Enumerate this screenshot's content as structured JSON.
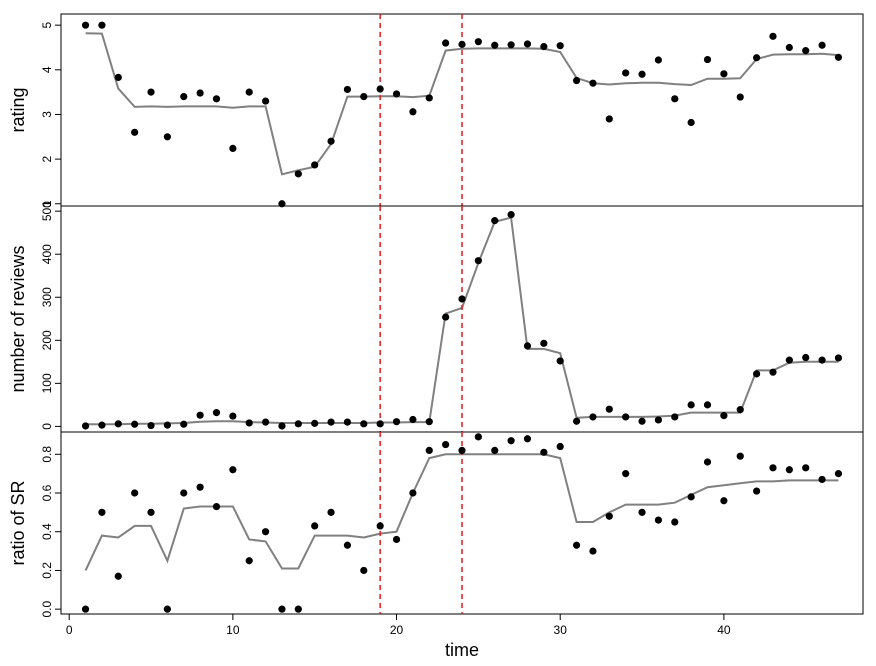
{
  "chart_data": [
    {
      "type": "scatter",
      "ylabel": "rating",
      "ylim": [
        0.95,
        5.25
      ],
      "yticks": [
        1,
        2,
        3,
        4,
        5
      ],
      "ytick_labels": [
        "1",
        "2",
        "3",
        "4",
        "5"
      ],
      "xlim": [
        -0.5,
        48.5
      ],
      "points": {
        "x": [
          1,
          2,
          3,
          4,
          5,
          6,
          7,
          8,
          9,
          10,
          11,
          12,
          13,
          14,
          15,
          16,
          17,
          18,
          19,
          20,
          21,
          22,
          23,
          24,
          25,
          26,
          27,
          28,
          29,
          30,
          31,
          32,
          33,
          34,
          35,
          36,
          37,
          38,
          39,
          40,
          41,
          42,
          43,
          44,
          45,
          46,
          47
        ],
        "y": [
          5.0,
          5.0,
          3.83,
          2.6,
          3.5,
          2.5,
          3.4,
          3.48,
          3.35,
          2.24,
          3.5,
          3.3,
          1.0,
          1.67,
          1.87,
          2.4,
          3.56,
          3.4,
          3.57,
          3.46,
          3.06,
          3.37,
          4.6,
          4.57,
          4.63,
          4.55,
          4.56,
          4.58,
          4.52,
          4.54,
          3.76,
          3.7,
          2.9,
          3.93,
          3.9,
          4.22,
          3.35,
          2.82,
          4.23,
          3.91,
          3.39,
          4.27,
          4.75,
          4.5,
          4.43,
          4.55,
          4.28
        ]
      },
      "smooth": {
        "x": [
          1,
          2,
          3,
          4,
          5,
          6,
          7,
          8,
          9,
          10,
          11,
          12,
          13,
          14,
          15,
          16,
          17,
          18,
          19,
          20,
          21,
          22,
          23,
          24,
          25,
          26,
          27,
          28,
          29,
          30,
          31,
          32,
          33,
          34,
          35,
          36,
          37,
          38,
          39,
          40,
          41,
          42,
          43,
          44,
          45,
          46,
          47
        ],
        "y": [
          4.82,
          4.81,
          3.58,
          3.17,
          3.18,
          3.17,
          3.18,
          3.18,
          3.18,
          3.15,
          3.18,
          3.18,
          1.66,
          1.75,
          1.83,
          2.34,
          3.4,
          3.4,
          3.41,
          3.41,
          3.39,
          3.42,
          4.43,
          4.47,
          4.48,
          4.48,
          4.48,
          4.48,
          4.47,
          4.4,
          3.82,
          3.7,
          3.67,
          3.7,
          3.71,
          3.71,
          3.68,
          3.66,
          3.8,
          3.8,
          3.81,
          4.24,
          4.34,
          4.35,
          4.35,
          4.36,
          4.33
        ]
      },
      "vlines": [
        19,
        24
      ],
      "show_xticks": false
    },
    {
      "type": "scatter",
      "ylabel": "number of reviews",
      "ylim": [
        -13,
        512
      ],
      "yticks": [
        0,
        100,
        200,
        300,
        400,
        500
      ],
      "ytick_labels": [
        "0",
        "100",
        "200",
        "300",
        "400",
        "500"
      ],
      "xlim": [
        -0.5,
        48.5
      ],
      "points": {
        "x": [
          1,
          2,
          3,
          4,
          5,
          6,
          7,
          8,
          9,
          10,
          11,
          12,
          13,
          14,
          15,
          16,
          17,
          18,
          19,
          20,
          21,
          22,
          23,
          24,
          25,
          26,
          27,
          28,
          29,
          30,
          31,
          32,
          33,
          34,
          35,
          36,
          37,
          38,
          39,
          40,
          41,
          42,
          43,
          44,
          45,
          46,
          47
        ],
        "y": [
          1,
          3,
          6,
          5,
          2,
          3,
          5,
          26,
          32,
          24,
          8,
          10,
          1,
          6,
          7,
          10,
          10,
          6,
          6,
          11,
          16,
          11,
          254,
          296,
          385,
          478,
          492,
          187,
          193,
          152,
          12,
          22,
          40,
          22,
          12,
          15,
          22,
          50,
          50,
          25,
          39,
          122,
          126,
          154,
          160,
          154,
          159
        ]
      },
      "smooth": {
        "x": [
          1,
          2,
          3,
          4,
          5,
          6,
          7,
          8,
          9,
          10,
          11,
          12,
          13,
          14,
          15,
          16,
          17,
          18,
          19,
          20,
          21,
          22,
          23,
          24,
          25,
          26,
          27,
          28,
          29,
          30,
          31,
          32,
          33,
          34,
          35,
          36,
          37,
          38,
          39,
          40,
          41,
          42,
          43,
          44,
          45,
          46,
          47
        ],
        "y": [
          5,
          5,
          5,
          6,
          6,
          7,
          8,
          11,
          12,
          12,
          10,
          9,
          8,
          8,
          8,
          8,
          8,
          8,
          9,
          9,
          10,
          10,
          262,
          275,
          380,
          475,
          485,
          180,
          180,
          170,
          20,
          22,
          22,
          22,
          22,
          23,
          25,
          32,
          32,
          32,
          32,
          130,
          130,
          148,
          150,
          150,
          150
        ]
      },
      "vlines": [
        19,
        24
      ],
      "show_xticks": false
    },
    {
      "type": "scatter",
      "xlabel": "time",
      "ylabel": "ratio of SR",
      "ylim": [
        -0.025,
        0.915
      ],
      "yticks": [
        0.0,
        0.2,
        0.4,
        0.6,
        0.8
      ],
      "ytick_labels": [
        "0.0",
        "0.2",
        "0.4",
        "0.6",
        "0.8"
      ],
      "xlim": [
        -0.5,
        48.5
      ],
      "xticks": [
        0,
        10,
        20,
        30,
        40
      ],
      "xtick_labels": [
        "0",
        "10",
        "20",
        "30",
        "40"
      ],
      "points": {
        "x": [
          1,
          2,
          3,
          4,
          5,
          6,
          7,
          8,
          9,
          10,
          11,
          12,
          13,
          14,
          15,
          16,
          17,
          18,
          19,
          20,
          21,
          22,
          23,
          24,
          25,
          26,
          27,
          28,
          29,
          30,
          31,
          32,
          33,
          34,
          35,
          36,
          37,
          38,
          39,
          40,
          41,
          42,
          43,
          44,
          45,
          46,
          47
        ],
        "y": [
          0.0,
          0.5,
          0.17,
          0.6,
          0.5,
          0.0,
          0.6,
          0.63,
          0.53,
          0.72,
          0.25,
          0.4,
          0.0,
          0.0,
          0.43,
          0.5,
          0.33,
          0.2,
          0.43,
          0.36,
          0.6,
          0.82,
          0.85,
          0.82,
          0.89,
          0.82,
          0.87,
          0.88,
          0.81,
          0.84,
          0.33,
          0.3,
          0.48,
          0.7,
          0.5,
          0.46,
          0.45,
          0.58,
          0.76,
          0.56,
          0.79,
          0.61,
          0.73,
          0.72,
          0.73,
          0.67,
          0.7
        ]
      },
      "smooth": {
        "x": [
          1,
          2,
          3,
          4,
          5,
          6,
          7,
          8,
          9,
          10,
          11,
          12,
          13,
          14,
          15,
          16,
          17,
          18,
          19,
          20,
          21,
          22,
          23,
          24,
          25,
          26,
          27,
          28,
          29,
          30,
          31,
          32,
          33,
          34,
          35,
          36,
          37,
          38,
          39,
          40,
          41,
          42,
          43,
          44,
          45,
          46,
          47
        ],
        "y": [
          0.2,
          0.38,
          0.37,
          0.43,
          0.43,
          0.25,
          0.52,
          0.53,
          0.53,
          0.53,
          0.36,
          0.35,
          0.21,
          0.21,
          0.38,
          0.38,
          0.38,
          0.37,
          0.39,
          0.4,
          0.6,
          0.78,
          0.8,
          0.8,
          0.8,
          0.8,
          0.8,
          0.8,
          0.8,
          0.78,
          0.45,
          0.45,
          0.5,
          0.54,
          0.54,
          0.54,
          0.55,
          0.59,
          0.63,
          0.64,
          0.65,
          0.66,
          0.66,
          0.665,
          0.665,
          0.665,
          0.665
        ]
      },
      "vlines": [
        19,
        24
      ],
      "show_xticks": true
    }
  ],
  "style": {
    "point_color": "#000000",
    "line_color": "#808080",
    "vline_color": "#e41a1c",
    "frame_color": "#000000"
  }
}
